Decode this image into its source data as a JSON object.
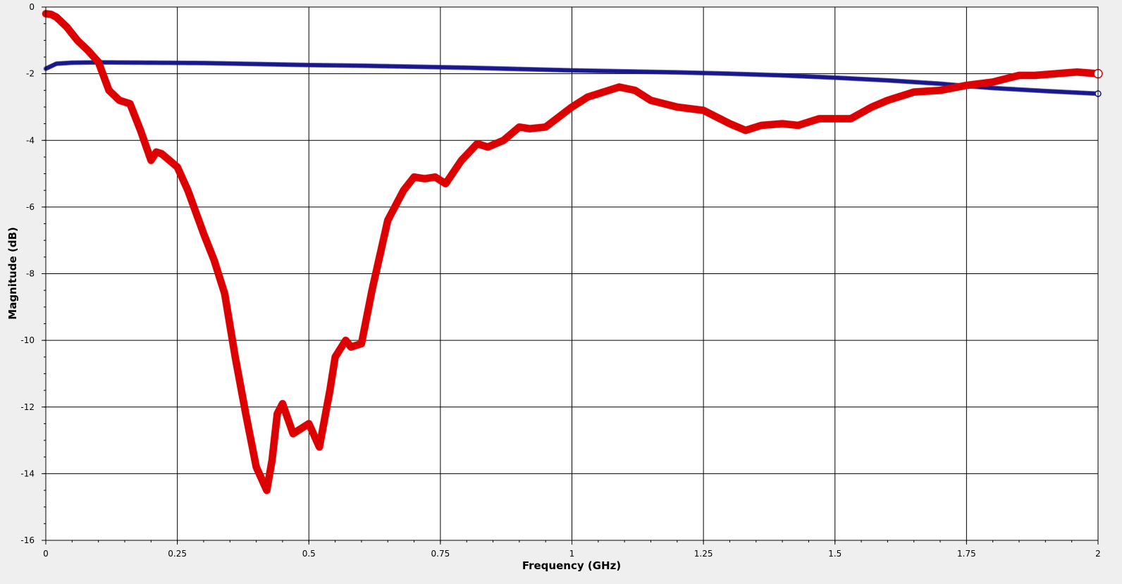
{
  "chart_data": {
    "type": "line",
    "xlabel": "Frequency (GHz)",
    "ylabel": "Magnitude (dB)",
    "xlim": [
      0,
      2
    ],
    "ylim": [
      -16,
      0
    ],
    "grid": true,
    "x_ticks": [
      0,
      0.25,
      0.5,
      0.75,
      1,
      1.25,
      1.5,
      1.75,
      2
    ],
    "x_tick_labels": [
      "0",
      "0.25",
      "0.5",
      "0.75",
      "1",
      "1.25",
      "1.5",
      "1.75",
      "2"
    ],
    "y_ticks": [
      0,
      -2,
      -4,
      -6,
      -8,
      -10,
      -12,
      -14,
      -16
    ],
    "y_tick_labels": [
      "0",
      "-2",
      "-4",
      "-6",
      "-8",
      "-10",
      "-12",
      "-14",
      "-16"
    ],
    "series": [
      {
        "color": "#1a1a8c",
        "x": [
          0,
          0.02,
          0.05,
          0.1,
          0.2,
          0.3,
          0.4,
          0.5,
          0.6,
          0.7,
          0.8,
          0.9,
          1.0,
          1.1,
          1.2,
          1.3,
          1.4,
          1.5,
          1.6,
          1.7,
          1.75,
          1.8,
          1.9,
          2.0
        ],
        "y": [
          -1.85,
          -1.7,
          -1.67,
          -1.66,
          -1.67,
          -1.68,
          -1.71,
          -1.74,
          -1.76,
          -1.79,
          -1.82,
          -1.86,
          -1.9,
          -1.93,
          -1.96,
          -2.0,
          -2.05,
          -2.12,
          -2.2,
          -2.3,
          -2.37,
          -2.43,
          -2.52,
          -2.6
        ]
      },
      {
        "color": "#dd0000",
        "x": [
          0,
          0.01,
          0.02,
          0.04,
          0.06,
          0.08,
          0.1,
          0.12,
          0.14,
          0.16,
          0.18,
          0.2,
          0.21,
          0.22,
          0.25,
          0.27,
          0.3,
          0.32,
          0.34,
          0.36,
          0.38,
          0.4,
          0.42,
          0.43,
          0.44,
          0.45,
          0.47,
          0.49,
          0.5,
          0.52,
          0.54,
          0.55,
          0.57,
          0.58,
          0.6,
          0.62,
          0.65,
          0.68,
          0.7,
          0.72,
          0.74,
          0.76,
          0.79,
          0.82,
          0.84,
          0.87,
          0.9,
          0.92,
          0.95,
          1.0,
          1.03,
          1.06,
          1.09,
          1.12,
          1.15,
          1.2,
          1.25,
          1.3,
          1.33,
          1.36,
          1.4,
          1.43,
          1.47,
          1.5,
          1.53,
          1.57,
          1.6,
          1.65,
          1.7,
          1.75,
          1.8,
          1.85,
          1.88,
          1.92,
          1.96,
          2.0
        ],
        "y": [
          -0.2,
          -0.22,
          -0.3,
          -0.6,
          -1.0,
          -1.3,
          -1.65,
          -2.5,
          -2.8,
          -2.9,
          -3.7,
          -4.6,
          -4.35,
          -4.4,
          -4.8,
          -5.5,
          -6.8,
          -7.6,
          -8.6,
          -10.5,
          -12.2,
          -13.8,
          -14.5,
          -13.6,
          -12.2,
          -11.9,
          -12.8,
          -12.6,
          -12.5,
          -13.2,
          -11.5,
          -10.5,
          -10.0,
          -10.2,
          -10.1,
          -8.5,
          -6.4,
          -5.5,
          -5.1,
          -5.15,
          -5.1,
          -5.3,
          -4.6,
          -4.1,
          -4.2,
          -4.0,
          -3.6,
          -3.65,
          -3.6,
          -3.0,
          -2.7,
          -2.55,
          -2.4,
          -2.5,
          -2.8,
          -3.0,
          -3.1,
          -3.5,
          -3.7,
          -3.55,
          -3.5,
          -3.55,
          -3.35,
          -3.35,
          -3.35,
          -3.0,
          -2.8,
          -2.55,
          -2.5,
          -2.35,
          -2.25,
          -2.05,
          -2.05,
          -2.0,
          -1.95,
          -2.0
        ]
      }
    ]
  }
}
